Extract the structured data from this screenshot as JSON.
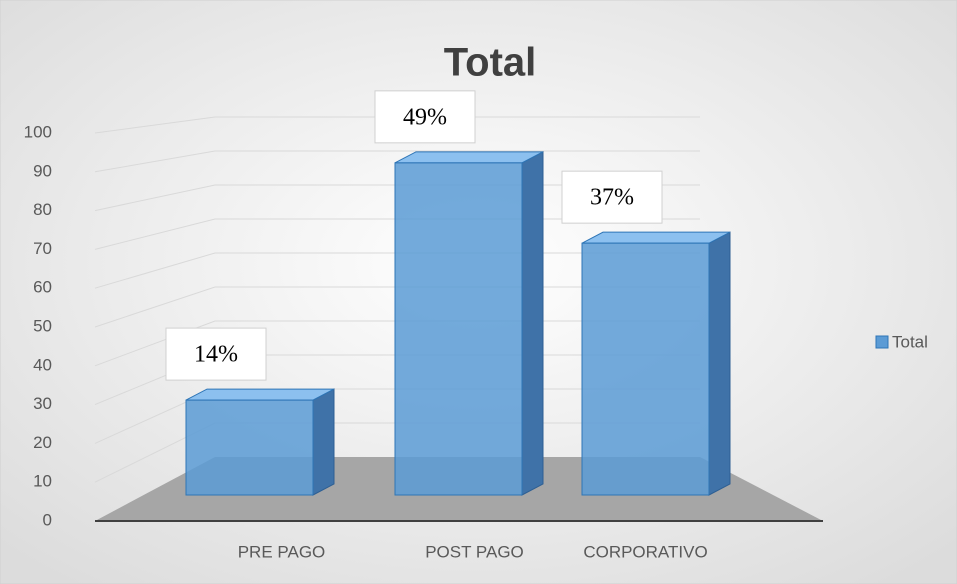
{
  "chart_data": {
    "type": "bar",
    "title": "Total",
    "categories": [
      "PRE PAGO",
      "POST PAGO",
      "CORPORATIVO"
    ],
    "series": [
      {
        "name": "Total",
        "color": "#5b9bd5",
        "values": [
          26,
          91,
          69
        ],
        "value_labels": [
          "14%",
          "49%",
          "37%"
        ]
      }
    ],
    "ylim": [
      0,
      100
    ],
    "yticks": [
      0,
      10,
      20,
      30,
      40,
      50,
      60,
      70,
      80,
      90,
      100
    ],
    "grid": true,
    "legend": "right"
  }
}
